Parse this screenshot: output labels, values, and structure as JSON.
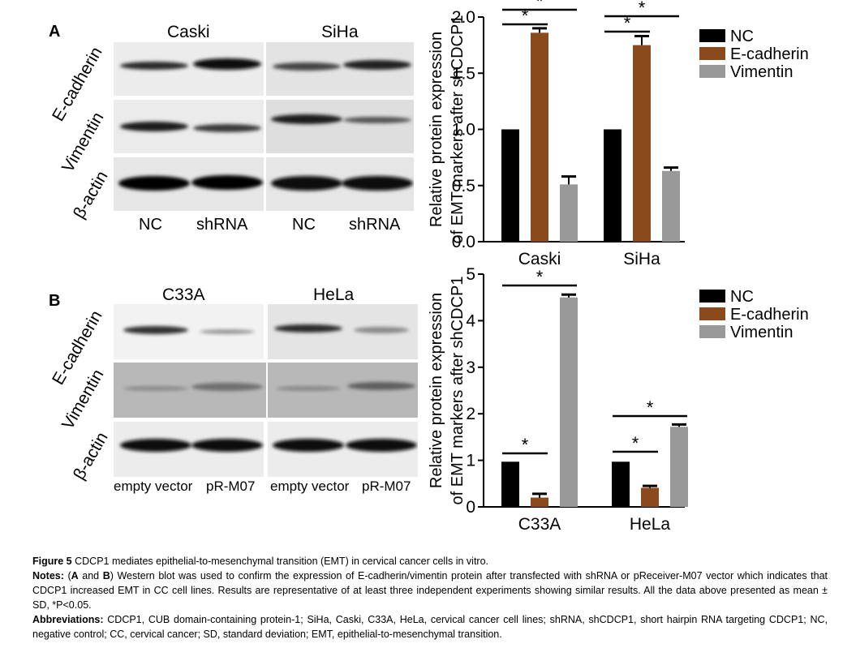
{
  "panel_a": {
    "letter": "A",
    "blot": {
      "cell_lines": [
        "Caski",
        "SiHa"
      ],
      "rows": [
        "E-cadherin",
        "Vimentin",
        "β-actin"
      ],
      "lanes": [
        "NC",
        "shRNA",
        "NC",
        "shRNA"
      ]
    }
  },
  "panel_b": {
    "letter": "B",
    "blot": {
      "cell_lines": [
        "C33A",
        "HeLa"
      ],
      "rows": [
        "E-cadherin",
        "Vimentin",
        "β-actin"
      ],
      "lanes": [
        "empty vector",
        "pR-M07",
        "empty vector",
        "pR-M07"
      ]
    }
  },
  "chart_data": [
    {
      "type": "bar",
      "categories": [
        "Caski",
        "SiHa"
      ],
      "series": [
        {
          "name": "NC",
          "values": [
            1.0,
            1.0
          ],
          "errors": [
            0,
            0
          ],
          "color": "#000000"
        },
        {
          "name": "E-cadherin",
          "values": [
            1.86,
            1.75
          ],
          "errors": [
            0.04,
            0.08
          ],
          "color": "#8B4A1C"
        },
        {
          "name": "Vimentin",
          "values": [
            0.51,
            0.63
          ],
          "errors": [
            0.07,
            0.03
          ],
          "color": "#999999"
        }
      ],
      "ylabel_line1": "Relative protein expression",
      "ylabel_line2": "of EMT markers after shCDCP1",
      "ylim": [
        0,
        2.0
      ],
      "yticks": [
        "0.0",
        "0.5",
        "1.0",
        "1.5",
        "2.0"
      ],
      "significance": [
        {
          "category": "Caski",
          "from": "NC",
          "to": "E-cadherin",
          "label": "*"
        },
        {
          "category": "Caski",
          "from": "NC",
          "to": "Vimentin",
          "label": "*"
        },
        {
          "category": "SiHa",
          "from": "NC",
          "to": "E-cadherin",
          "label": "*"
        },
        {
          "category": "SiHa",
          "from": "NC",
          "to": "Vimentin",
          "label": "*"
        }
      ],
      "legend_position": "top-right"
    },
    {
      "type": "bar",
      "categories": [
        "C33A",
        "HeLa"
      ],
      "series": [
        {
          "name": "NC",
          "values": [
            0.97,
            0.97
          ],
          "errors": [
            0,
            0
          ],
          "color": "#000000"
        },
        {
          "name": "E-cadherin",
          "values": [
            0.2,
            0.41
          ],
          "errors": [
            0.08,
            0.04
          ],
          "color": "#8B4A1C"
        },
        {
          "name": "Vimentin",
          "values": [
            4.5,
            1.72
          ],
          "errors": [
            0.06,
            0.05
          ],
          "color": "#999999"
        }
      ],
      "ylabel_line1": "Relative protein expression",
      "ylabel_line2": "of EMT markers after shCDCP1",
      "ylim": [
        0,
        5
      ],
      "yticks": [
        "0",
        "1",
        "2",
        "3",
        "4",
        "5"
      ],
      "significance": [
        {
          "category": "C33A",
          "from": "NC",
          "to": "E-cadherin",
          "label": "*"
        },
        {
          "category": "C33A",
          "from": "NC",
          "to": "Vimentin",
          "label": "*"
        },
        {
          "category": "HeLa",
          "from": "NC",
          "to": "E-cadherin",
          "label": "*"
        },
        {
          "category": "HeLa",
          "from": "NC",
          "to": "Vimentin",
          "label": "*"
        }
      ],
      "legend_position": "top-right"
    }
  ],
  "caption": {
    "figure_label": "Figure 5",
    "figure_title": "CDCP1 mediates epithelial-to-mesenchymal transition (EMT) in cervical cancer cells in vitro.",
    "notes_label": "Notes:",
    "notes_open": "(",
    "notes_a": "A",
    "notes_and": " and ",
    "notes_b": "B",
    "notes_text": ") Western blot was used to confirm the expression of E-cadherin/vimentin protein after transfected with shRNA or pReceiver-M07 vector which indicates that CDCP1 increased EMT in CC cell lines. Results are representative of at least three independent experiments showing similar results. All the data above presented as mean ± SD, *P<0.05.",
    "abbrev_label": "Abbreviations:",
    "abbrev_text": "CDCP1, CUB domain-containing protein-1; SiHa, Caski, C33A, HeLa, cervical cancer cell lines; shRNA, shCDCP1, short hairpin RNA targeting CDCP1; NC, negative control; CC, cervical cancer; SD, standard deviation; EMT, epithelial-to-mesenchymal transition."
  }
}
